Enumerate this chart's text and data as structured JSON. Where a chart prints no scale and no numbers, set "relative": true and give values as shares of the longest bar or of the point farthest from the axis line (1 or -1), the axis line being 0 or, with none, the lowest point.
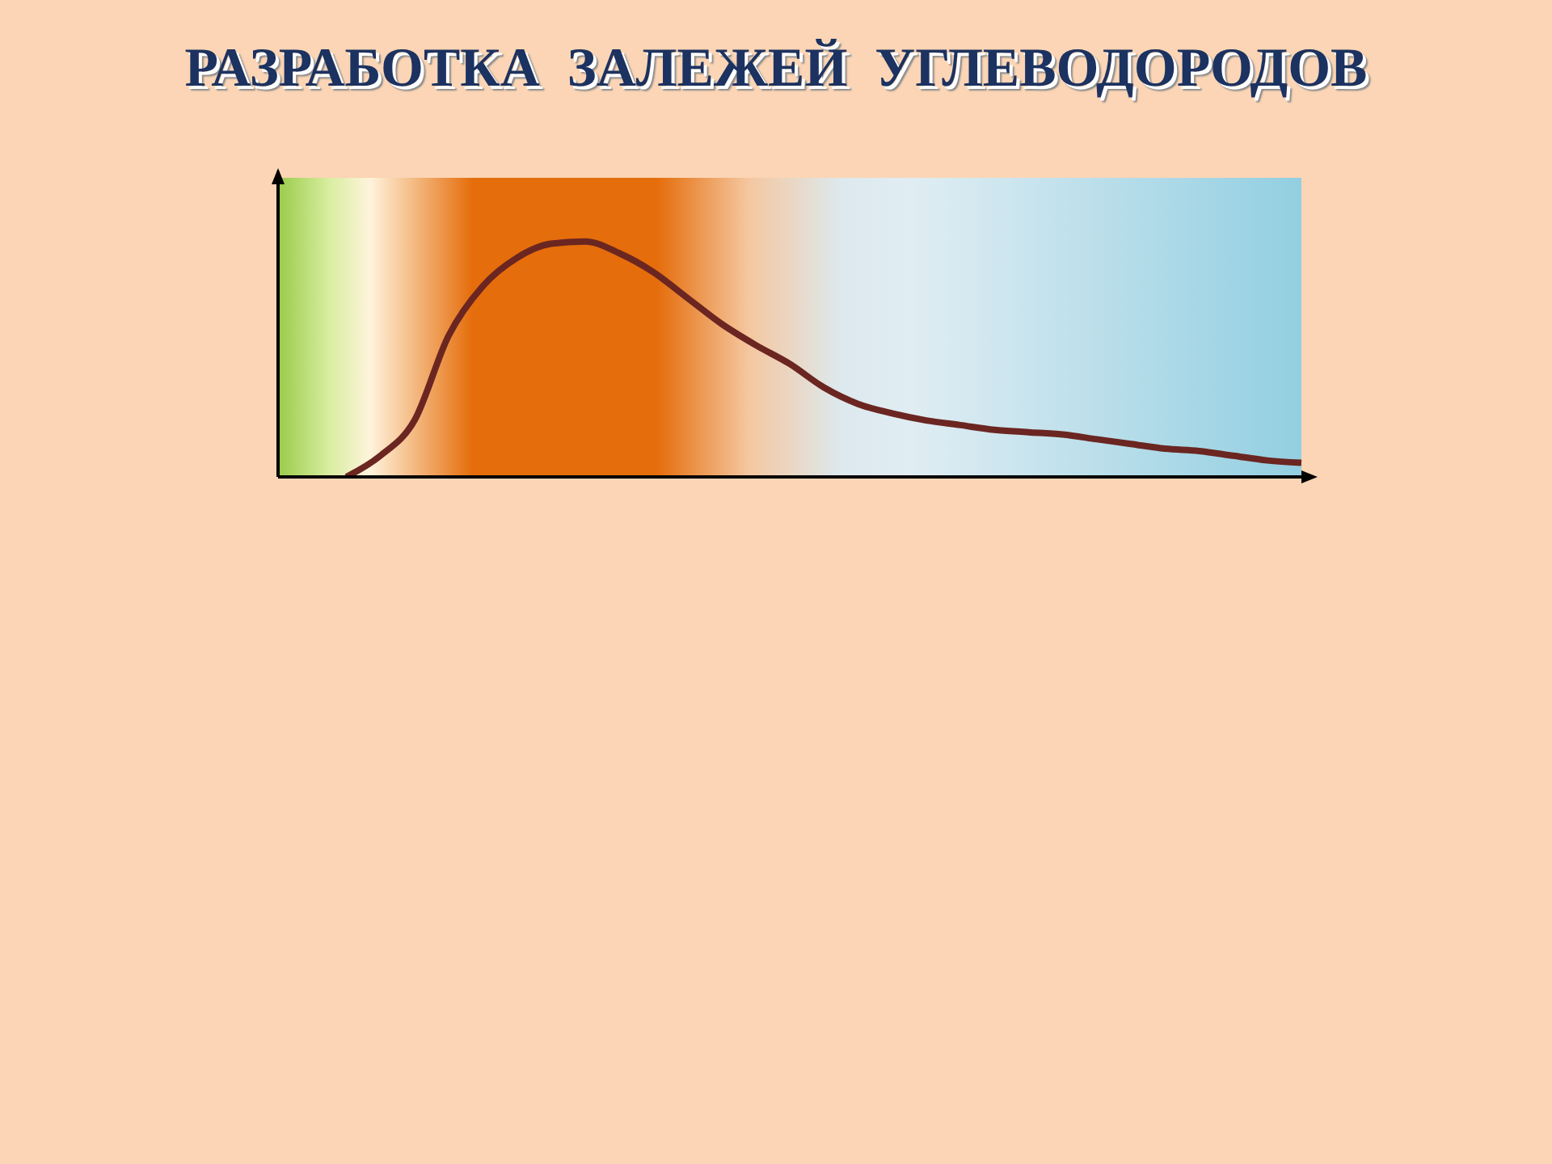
{
  "chart_data": {
    "type": "line",
    "title": "РАЗРАБОТКА  ЗАЛЕЖЕЙ  УГЛЕВОДОРОДОВ",
    "relative": true,
    "categories": [
      null,
      null,
      null,
      null,
      null,
      null,
      null,
      null,
      null,
      null,
      null,
      null,
      null,
      null,
      null,
      null,
      null,
      null,
      null,
      null,
      null,
      null,
      null,
      null,
      null,
      null,
      null,
      null,
      null,
      null,
      null
    ],
    "series": [
      {
        "color": "#6b2621",
        "values": [
          null,
          null,
          0,
          0.09,
          0.24,
          0.6,
          0.81,
          0.93,
          0.99,
          1,
          0.95,
          0.87,
          0.76,
          0.65,
          0.56,
          0.48,
          0.38,
          0.31,
          0.27,
          0.24,
          0.22,
          0.2,
          0.19,
          0.18,
          0.16,
          0.14,
          0.12,
          0.11,
          0.09,
          0.07,
          0.06
        ]
      }
    ],
    "grid": false,
    "legend": false,
    "marker": "none",
    "line_style": "solid"
  }
}
